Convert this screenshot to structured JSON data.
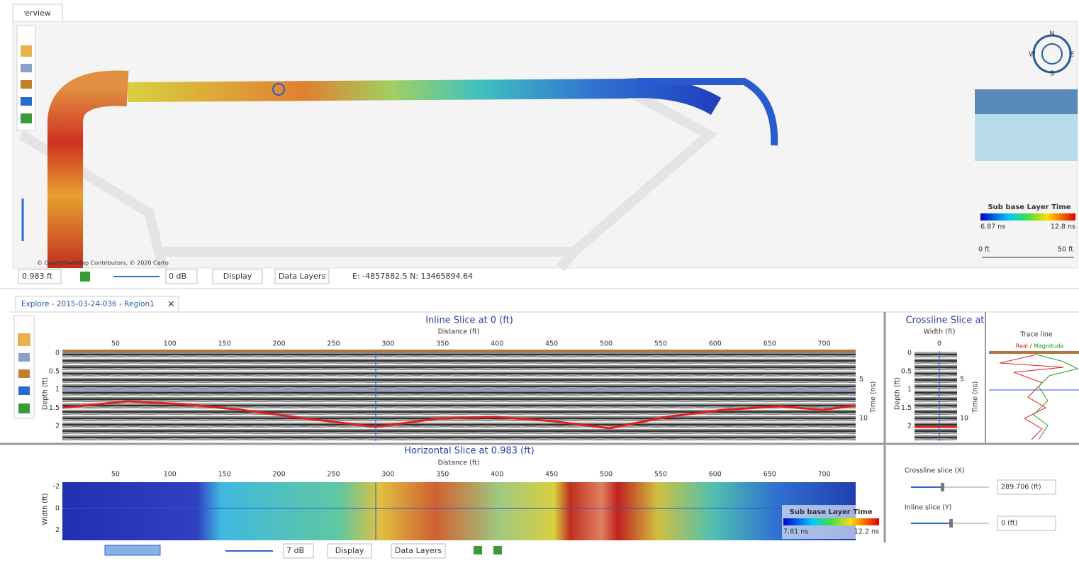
{
  "overview": {
    "tab": "Overview",
    "compass": {
      "n": "N",
      "w": "W",
      "e": "E",
      "s": "S"
    },
    "legend": {
      "title": "Sub base Layer Time",
      "min": "6.87 ns",
      "max": "12.8 ns"
    },
    "scale": {
      "start": "0 ft",
      "end": "50 ft"
    },
    "attribution": "© OpenStreetMap Contributors, © 2020 Carto",
    "toolbar": {
      "depth": "0.983 ft",
      "gain": "0 dB",
      "display": "Display",
      "data_layers": "Data Layers",
      "coords": "E: -4857882.5 N: 13465894.64"
    }
  },
  "explore": {
    "tab": "Explore - 2015-03-24-036 - Region1",
    "inline": {
      "title": "Inline Slice at 0 (ft)",
      "x_label": "Distance (ft)",
      "x_ticks": [
        50,
        100,
        150,
        200,
        250,
        300,
        350,
        400,
        450,
        500,
        550,
        600,
        650,
        700
      ],
      "y_label": "Depth (ft)",
      "y_ticks": [
        0,
        0.5,
        1,
        1.5,
        2
      ],
      "y2_label": "Time (ns)",
      "y2_ticks": [
        5,
        10
      ]
    },
    "crossline": {
      "title": "Crossline Slice at",
      "x_label": "Width (ft)",
      "x_ticks": [
        0
      ],
      "y_label": "Depth (ft)",
      "y_ticks": [
        0,
        0.5,
        1,
        1.5,
        2
      ],
      "y2_label": "Time (ns)",
      "y2_ticks": [
        5,
        10
      ]
    },
    "trace": {
      "title": "Trace line",
      "real": "Real",
      "sep": "/",
      "magnitude": "Magnitude"
    },
    "horizontal": {
      "title": "Horizontal Slice at 0.983 (ft)",
      "x_label": "Distance (ft)",
      "x_ticks": [
        50,
        100,
        150,
        200,
        250,
        300,
        350,
        400,
        450,
        500,
        550,
        600,
        650,
        700
      ],
      "y_label": "Width (ft)",
      "y_ticks": [
        -2,
        0,
        2
      ],
      "legend": {
        "title": "Sub base Layer Time",
        "min": "7.81 ns",
        "max": "12.2 ns"
      }
    },
    "controls": {
      "crossline_label": "Crossline slice (X)",
      "crossline_value": "289.706 (ft)",
      "inline_label": "Inline slice (Y)",
      "inline_value": "0 (ft)"
    },
    "toolbar": {
      "gain": "7 dB",
      "display": "Display",
      "data_layers": "Data Layers"
    }
  }
}
